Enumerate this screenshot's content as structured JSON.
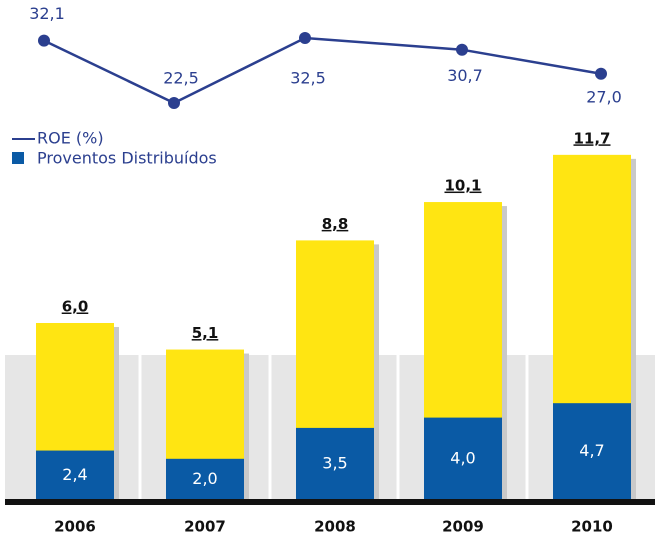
{
  "chart_data": [
    {
      "type": "line",
      "categories": [
        "2006",
        "2007",
        "2008",
        "2009",
        "2010"
      ],
      "series": [
        {
          "name": "ROE (%)",
          "color": "#2b3f8f",
          "values": [
            32.1,
            22.5,
            32.5,
            30.7,
            27.0
          ],
          "value_labels": [
            "32,1",
            "22,5",
            "32,5",
            "30,7",
            "27,0"
          ]
        }
      ]
    },
    {
      "type": "bar",
      "categories": [
        "2006",
        "2007",
        "2008",
        "2009",
        "2010"
      ],
      "series": [
        {
          "color": "#ffe512",
          "values": [
            6.0,
            5.1,
            8.8,
            10.1,
            11.7
          ],
          "value_labels": [
            "6,0",
            "5,1",
            "8,8",
            "10,1",
            "11,7"
          ]
        },
        {
          "name": "Proventos Distribuídos",
          "color": "#0a5aa5",
          "values": [
            2.4,
            2.0,
            3.5,
            4.0,
            4.7
          ],
          "value_labels": [
            "2,4",
            "2,0",
            "3,5",
            "4,0",
            "4,7"
          ]
        }
      ]
    }
  ]
}
